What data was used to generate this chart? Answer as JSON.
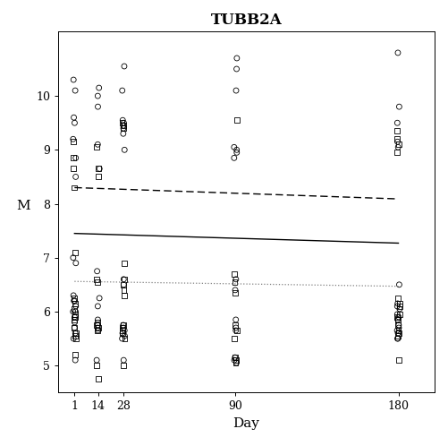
{
  "title": "TUBB2A",
  "xlabel": "Day",
  "ylabel": "M",
  "x_ticks": [
    1,
    14,
    28,
    90,
    180
  ],
  "xlim": [
    -8,
    200
  ],
  "ylim": [
    4.5,
    11.2
  ],
  "yticks": [
    5,
    6,
    7,
    8,
    9,
    10
  ],
  "line_solid": {
    "x": [
      1,
      180
    ],
    "y": [
      7.45,
      7.27
    ]
  },
  "line_dashed": {
    "x": [
      1,
      180
    ],
    "y": [
      8.3,
      8.09
    ]
  },
  "line_dotted": {
    "x": [
      1,
      180
    ],
    "y": [
      6.56,
      6.47
    ]
  },
  "circles_day1": [
    10.3,
    10.1,
    9.6,
    9.5,
    9.2,
    8.85,
    8.5,
    7.0,
    6.9,
    6.3,
    6.2,
    6.2,
    6.1,
    6.0,
    6.0,
    5.9,
    5.8,
    5.7,
    5.6,
    5.5,
    5.1
  ],
  "squares_day1": [
    9.15,
    8.85,
    8.65,
    8.3,
    7.1,
    6.25,
    6.15,
    6.05,
    5.95,
    5.9,
    5.85,
    5.7,
    5.6,
    5.55,
    5.5,
    5.2
  ],
  "circles_day14": [
    10.15,
    10.0,
    9.8,
    9.1,
    8.65,
    6.75,
    6.25,
    6.1,
    5.85,
    5.75,
    5.7,
    5.65,
    5.1
  ],
  "squares_day14": [
    9.05,
    8.65,
    8.5,
    6.6,
    6.55,
    5.8,
    5.75,
    5.7,
    5.65,
    5.0,
    4.75
  ],
  "circles_day28": [
    10.55,
    10.1,
    9.55,
    9.5,
    9.45,
    9.4,
    9.3,
    9.0,
    6.6,
    6.5,
    5.75,
    5.7,
    5.65,
    5.6,
    5.55,
    5.5,
    5.1
  ],
  "squares_day28": [
    9.5,
    9.45,
    9.4,
    6.9,
    6.6,
    6.5,
    6.4,
    6.3,
    5.75,
    5.7,
    5.65,
    5.6,
    5.5,
    5.0
  ],
  "circles_day90": [
    10.7,
    10.5,
    10.1,
    9.05,
    9.0,
    8.95,
    8.85,
    6.6,
    6.4,
    5.85,
    5.7,
    5.65,
    5.15,
    5.1,
    5.05
  ],
  "squares_day90": [
    9.55,
    6.7,
    6.55,
    6.35,
    5.75,
    5.65,
    5.5,
    5.15,
    5.1,
    5.05
  ],
  "circles_day180": [
    10.8,
    9.8,
    9.5,
    9.15,
    9.05,
    6.5,
    6.15,
    6.1,
    6.05,
    5.95,
    5.9,
    5.85,
    5.75,
    5.7,
    5.65,
    5.6,
    5.5,
    5.5
  ],
  "squares_day180": [
    9.35,
    9.2,
    9.1,
    8.95,
    6.25,
    6.15,
    6.1,
    5.95,
    5.9,
    5.85,
    5.75,
    5.65,
    5.6,
    5.55,
    5.1
  ],
  "marker_size": 18,
  "jitter_scale": 0.8,
  "background_color": "#ffffff",
  "line_color": "#000000"
}
